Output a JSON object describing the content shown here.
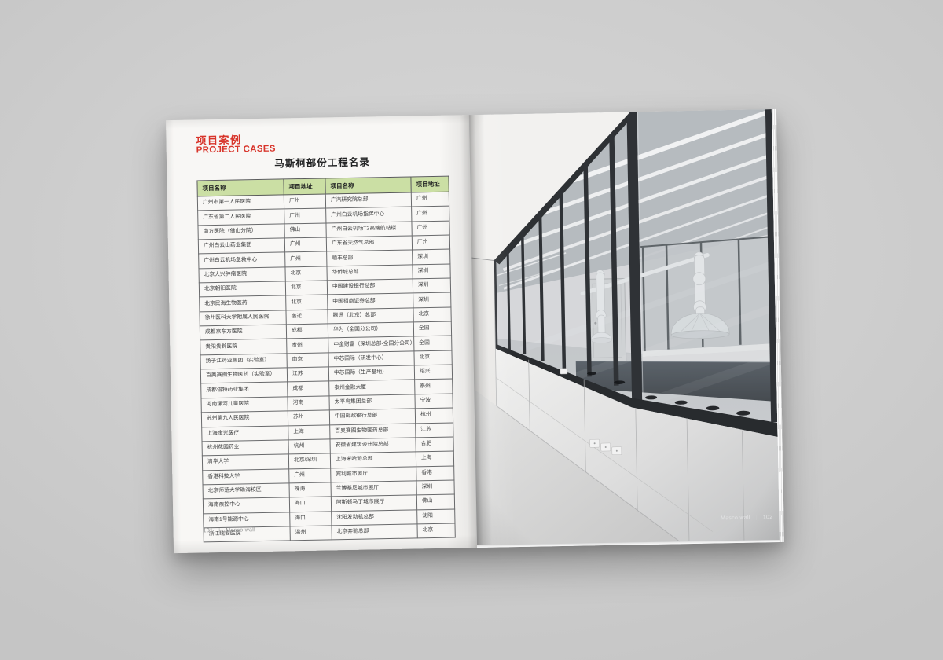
{
  "theme": {
    "background": "#cdcdcd",
    "paper": "#f8f7f5",
    "accent_red": "#d8352b",
    "table_header_green": "#cbdfa4",
    "table_border": "#5a5b5c",
    "text_dark": "#3a3b3c",
    "footer_gray": "#8f9090",
    "photo_footer_text": "#e3e4e5"
  },
  "left_page": {
    "section_title_zh": "项目案例",
    "section_title_en": "PROJECT CASES",
    "table_title": "马斯柯部份工程名录",
    "table": {
      "columns": [
        "项目名称",
        "项目地址",
        "项目名称",
        "项目地址"
      ],
      "rows": [
        [
          "广州市第一人民医院",
          "广州",
          "广汽研究院总部",
          "广州"
        ],
        [
          "广东省第二人民医院",
          "广州",
          "广州白云机场指挥中心",
          "广州"
        ],
        [
          "南方医院（佛山分院）",
          "佛山",
          "广州白云机场T2高端航站楼",
          "广州"
        ],
        [
          "广州白云山药业集团",
          "广州",
          "广东省天然气总部",
          "广州"
        ],
        [
          "广州白云机场急救中心",
          "广州",
          "顺丰总部",
          "深圳"
        ],
        [
          "北京大兴肿瘤医院",
          "北京",
          "华侨城总部",
          "深圳"
        ],
        [
          "北京朝阳医院",
          "北京",
          "中国建设银行总部",
          "深圳"
        ],
        [
          "北京民海生物医药",
          "北京",
          "中国招商证券总部",
          "深圳"
        ],
        [
          "徐州医科大学附属人民医院",
          "宿迁",
          "腾讯（北京）总部",
          "北京"
        ],
        [
          "成都京东方医院",
          "成都",
          "华为（全国分公司）",
          "全国"
        ],
        [
          "贵阳贵黔医院",
          "贵州",
          "中金财富（深圳总部-全国分公司）",
          "全国"
        ],
        [
          "扬子江药业集团（实验室）",
          "南京",
          "中芯国际（研发中心）",
          "北京"
        ],
        [
          "百奥赛图生物医药（实验室）",
          "江苏",
          "中芯国际（生产基地）",
          "绍兴"
        ],
        [
          "成都倍特药业集团",
          "成都",
          "泰州金融大厦",
          "泰州"
        ],
        [
          "河南漯河儿童医院",
          "河南",
          "太平鸟集团总部",
          "宁波"
        ],
        [
          "苏州第九人民医院",
          "苏州",
          "中国邮政银行总部",
          "杭州"
        ],
        [
          "上海金光医疗",
          "上海",
          "百奥赛图生物医药总部",
          "江苏"
        ],
        [
          "杭州花园药业",
          "杭州",
          "安徽省建筑设计院总部",
          "合肥"
        ],
        [
          "清华大学",
          "北京/深圳",
          "上海米哈游总部",
          "上海"
        ],
        [
          "香港科技大学",
          "广州",
          "宾利城市展厅",
          "香港"
        ],
        [
          "北京师范大学珠海校区",
          "珠海",
          "兰博基尼城市展厅",
          "深圳"
        ],
        [
          "海南疾控中心",
          "海口",
          "阿斯顿马丁城市展厅",
          "佛山"
        ],
        [
          "海南1号能源中心",
          "海口",
          "沈阳发动机总部",
          "沈阳"
        ],
        [
          "浙江瑞安医院",
          "温州",
          "北京奔驰总部",
          "北京"
        ]
      ]
    },
    "footer": {
      "page_number": "101",
      "separator": "|",
      "book_title": "Masco wall"
    }
  },
  "right_page": {
    "footer": {
      "book_title": "Masco wall",
      "separator": "|",
      "page_number": "102"
    }
  }
}
